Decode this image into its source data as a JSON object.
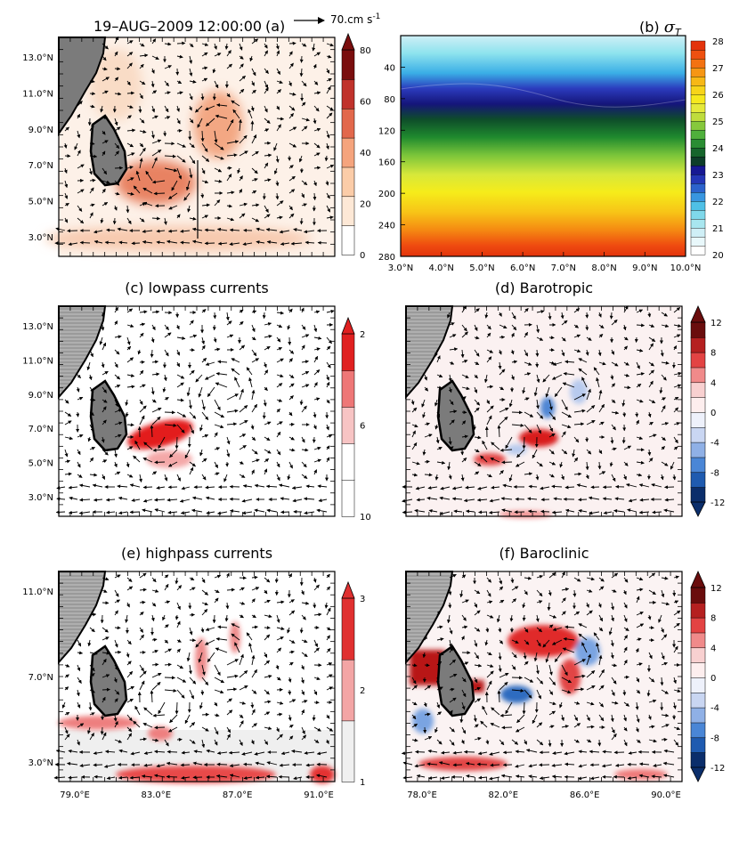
{
  "figure": {
    "date_title": "19–AUG–2009 12:00:00",
    "panel_a_tag": "(a)",
    "ref_vector": "70.cm s",
    "ref_vector_exp": "-1",
    "panel_b_tag": "(b)",
    "panel_b_symbol": "σ",
    "panel_b_symbol_sub": "T",
    "panel_c_title": "(c) lowpass currents",
    "panel_d_title": "(d)  Barotropic",
    "panel_e_title": "(e) highpass currents",
    "panel_f_title": "(f) Baroclinic"
  },
  "chart_data": [
    {
      "id": "a",
      "type": "heatmap",
      "title": "19–AUG–2009 12:00:00 (a)",
      "description": "current speed with velocity vectors",
      "ytick_labels": [
        "13.0°N",
        "11.0°N",
        "9.0°N",
        "7.0°N",
        "5.0°N",
        "3.0°N"
      ],
      "colorbar": {
        "levels": [
          "0",
          "20",
          "40",
          "60",
          "80"
        ],
        "colors": [
          "#ffffff",
          "#fde8d6",
          "#fbcca8",
          "#f5a47d",
          "#e2684c",
          "#c0322b",
          "#7a0e0e"
        ],
        "extend": "max"
      }
    },
    {
      "id": "b",
      "type": "heatmap",
      "title": "(b) σT",
      "x_ticks": [
        "3.0°N",
        "4.0°N",
        "5.0°N",
        "6.0°N",
        "7.0°N",
        "8.0°N",
        "9.0°N",
        "10.0°N"
      ],
      "y_ticks": [
        "40",
        "80",
        "120",
        "160",
        "200",
        "240",
        "280"
      ],
      "ylim": [
        280,
        0
      ],
      "colorbar": {
        "levels": [
          "20",
          "21",
          "22",
          "23",
          "24",
          "25",
          "26",
          "27",
          "28"
        ]
      }
    },
    {
      "id": "c",
      "type": "heatmap",
      "title": "(c) lowpass currents",
      "ytick_labels": [
        "13.0°N",
        "11.0°N",
        "9.0°N",
        "7.0°N",
        "5.0°N",
        "3.0°N"
      ],
      "colorbar": {
        "levels": [
          "2",
          "6",
          "10"
        ],
        "colors": [
          "#ffffff",
          "#f7c4c4",
          "#ee7777",
          "#e02020",
          "#d01010"
        ],
        "extend": "max"
      }
    },
    {
      "id": "d",
      "type": "heatmap",
      "title": "(d) Barotropic",
      "colorbar": {
        "levels": [
          "12",
          "8",
          "4",
          "0",
          "-4",
          "-8",
          "-12"
        ],
        "colors": [
          "#6a0d0d",
          "#b52020",
          "#e34343",
          "#f08a8a",
          "#f8d0d0",
          "#fdeeee",
          "#eef1fb",
          "#c9d6f2",
          "#8fb0e6",
          "#4a86d6",
          "#1f5bb0",
          "#0b2e6b"
        ],
        "extend": "both"
      }
    },
    {
      "id": "e",
      "type": "heatmap",
      "title": "(e) highpass currents",
      "x_ticks": [
        "79.0°E",
        "83.0°E",
        "87.0°E",
        "91.0°E"
      ],
      "ytick_labels": [
        "11.0°N",
        "7.0°N",
        "3.0°N"
      ],
      "colorbar": {
        "levels": [
          "1",
          "2",
          "3"
        ],
        "colors": [
          "#f0f0f0",
          "#f3a5a5",
          "#e03030",
          "#d01010"
        ],
        "extend": "max"
      }
    },
    {
      "id": "f",
      "type": "heatmap",
      "title": "(f) Baroclinic",
      "x_ticks": [
        "78.0°E",
        "82.0°E",
        "86.0°E",
        "90.0°E"
      ],
      "colorbar": {
        "levels": [
          "12",
          "8",
          "4",
          "0",
          "-4",
          "-8",
          "-12"
        ],
        "extend": "both"
      }
    }
  ]
}
